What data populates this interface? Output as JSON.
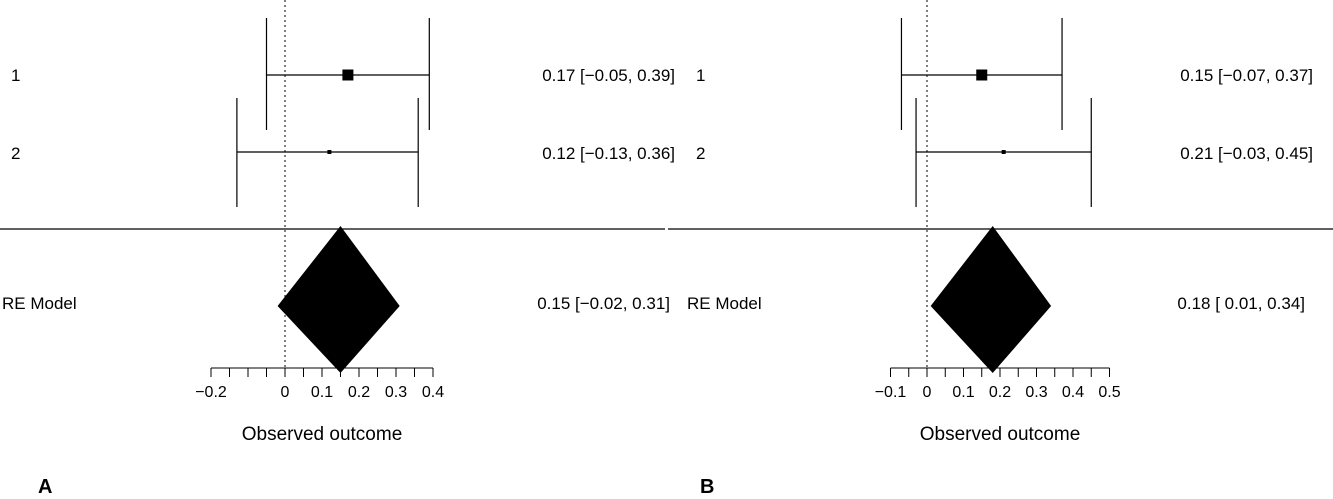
{
  "chart_data": [
    {
      "type": "forest",
      "panel_label": "A",
      "xlabel": "Observed outcome",
      "xticks": [
        "−0.2",
        "0",
        "0.1",
        "0.2",
        "0.3",
        "0.4"
      ],
      "xlim": [
        -0.2,
        0.4
      ],
      "studies": [
        {
          "label": "1",
          "estimate": 0.17,
          "ci_low": -0.05,
          "ci_high": 0.39,
          "text": "0.17 [−0.05, 0.39]"
        },
        {
          "label": "2",
          "estimate": 0.12,
          "ci_low": -0.13,
          "ci_high": 0.36,
          "text": "0.12 [−0.13, 0.36]"
        }
      ],
      "summary": {
        "label": "RE Model",
        "estimate": 0.15,
        "ci_low": -0.02,
        "ci_high": 0.31,
        "text": "0.15 [−0.02, 0.31]"
      }
    },
    {
      "type": "forest",
      "panel_label": "B",
      "xlabel": "Observed outcome",
      "xticks": [
        "−0.1",
        "0",
        "0.1",
        "0.2",
        "0.3",
        "0.4",
        "0.5"
      ],
      "xlim": [
        -0.1,
        0.5
      ],
      "studies": [
        {
          "label": "1",
          "estimate": 0.15,
          "ci_low": -0.07,
          "ci_high": 0.37,
          "text": "0.15 [−0.07, 0.37]"
        },
        {
          "label": "2",
          "estimate": 0.21,
          "ci_low": -0.03,
          "ci_high": 0.45,
          "text": "0.21 [−0.03, 0.45]"
        }
      ],
      "summary": {
        "label": "RE Model",
        "estimate": 0.18,
        "ci_low": 0.01,
        "ci_high": 0.34,
        "text": "0.18 [ 0.01, 0.34]"
      }
    }
  ]
}
